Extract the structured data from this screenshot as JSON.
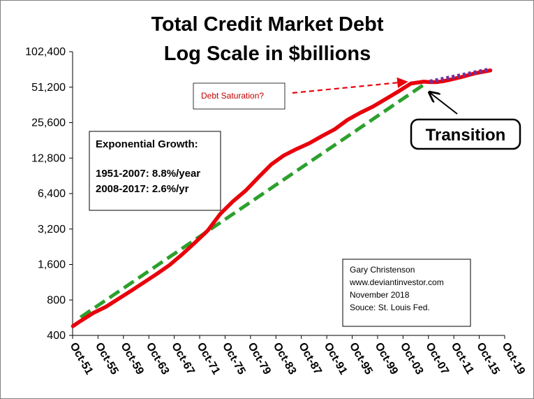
{
  "chart_data": {
    "type": "line",
    "title_lines": [
      "Total Credit Market Debt",
      "Log Scale in $billions"
    ],
    "y_scale": "log2",
    "ylim": [
      400,
      102400
    ],
    "y_ticks": [
      400,
      800,
      1600,
      3200,
      6400,
      12800,
      25600,
      51200,
      102400
    ],
    "y_tick_labels": [
      "400",
      "800",
      "1,600",
      "3,200",
      "6,400",
      "12,800",
      "25,600",
      "51,200",
      "102,400"
    ],
    "xlim": [
      "1951-10",
      "2019-10"
    ],
    "x_tick_labels": [
      "Oct-51",
      "Oct-55",
      "Oct-59",
      "Oct-63",
      "Oct-67",
      "Oct-71",
      "Oct-75",
      "Oct-79",
      "Oct-83",
      "Oct-87",
      "Oct-91",
      "Oct-95",
      "Oct-99",
      "Oct-03",
      "Oct-07",
      "Oct-11",
      "Oct-15",
      "Oct-19"
    ],
    "series": [
      {
        "style": "solid",
        "color": "#e8000b",
        "x": [
          1951.8,
          1953,
          1955,
          1957,
          1959,
          1961,
          1963,
          1965,
          1967,
          1969,
          1971,
          1973,
          1975,
          1977,
          1979,
          1981,
          1983,
          1985,
          1987,
          1989,
          1991,
          1993,
          1995,
          1997,
          1999,
          2001,
          2003,
          2005,
          2007,
          2008,
          2009,
          2010,
          2011,
          2013,
          2015,
          2017.5
        ],
        "y": [
          480,
          530,
          620,
          700,
          820,
          960,
          1130,
          1330,
          1580,
          1950,
          2450,
          3100,
          4300,
          5500,
          6800,
          8800,
          11300,
          13500,
          15300,
          17100,
          19700,
          22500,
          27000,
          31000,
          35000,
          40500,
          47000,
          55000,
          57000,
          56500,
          56500,
          57500,
          59000,
          62500,
          67000,
          71000
        ]
      },
      {
        "style": "dashed",
        "color": "#2ca02c",
        "x": [
          1953,
          2007.5
        ],
        "y": [
          570,
          56000
        ]
      },
      {
        "style": "dotted",
        "color": "#7030a0",
        "x": [
          2008,
          2017.5
        ],
        "y": [
          57000,
          72500
        ]
      }
    ],
    "annotations": {
      "growth_title": "Exponential Growth:",
      "growth_line1": "1951-2007:  8.8%/year",
      "growth_line2": "2008-2017:  2.6%/yr",
      "saturation": "Debt Saturation?",
      "transition": "Transition",
      "source_lines": [
        "Gary Christenson",
        "www.deviantinvestor.com",
        "November 2018",
        "Souce: St. Louis Fed."
      ]
    }
  }
}
